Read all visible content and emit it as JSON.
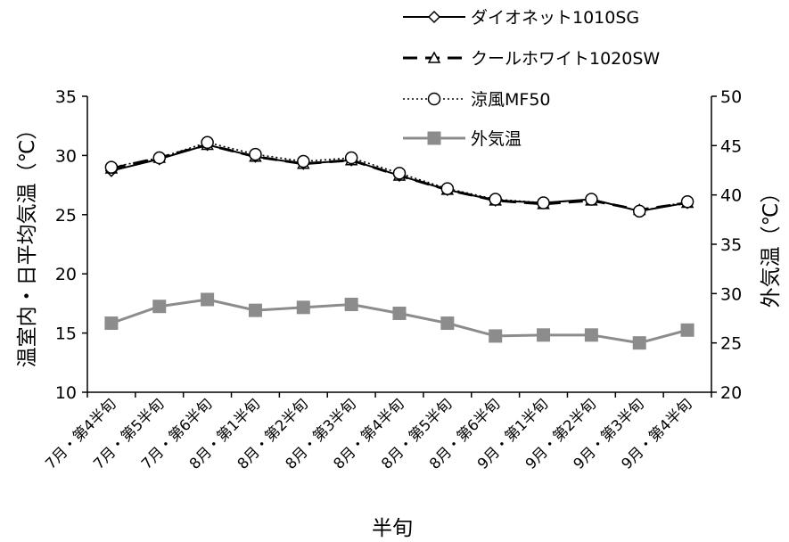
{
  "chart_data": {
    "type": "line",
    "title": "",
    "xlabel": "半旬",
    "ylabel_left": "温室内・日平均気温（℃）",
    "ylabel_right": "外気温（℃）",
    "ylim_left": [
      10,
      35
    ],
    "yticks_left": [
      "10",
      "15",
      "20",
      "25",
      "30",
      "35"
    ],
    "ylim_right": [
      20,
      50
    ],
    "yticks_right": [
      "20",
      "25",
      "30",
      "35",
      "40",
      "45",
      "50"
    ],
    "grid": false,
    "legend_position": "top-right",
    "categories": [
      "7月・第4半旬",
      "7月・第5半旬",
      "7月・第6半旬",
      "8月・第1半旬",
      "8月・第2半旬",
      "8月・第3半旬",
      "8月・第4半旬",
      "8月・第5半旬",
      "8月・第6半旬",
      "9月・第1半旬",
      "9月・第2半旬",
      "9月・第3半旬",
      "9月・第4半旬"
    ],
    "series": [
      {
        "name": "ダイオネット1010SG",
        "axis": "left",
        "marker": "diamond",
        "line": "solid",
        "color": "#000000",
        "values": [
          28.7,
          29.7,
          30.9,
          29.9,
          29.3,
          29.6,
          28.3,
          27.1,
          26.2,
          26.0,
          26.3,
          25.3,
          26.0
        ]
      },
      {
        "name": "クールホワイト1020SW",
        "axis": "left",
        "marker": "triangle",
        "line": "dashed",
        "color": "#000000",
        "values": [
          28.9,
          29.8,
          30.9,
          29.9,
          29.3,
          29.6,
          28.3,
          27.1,
          26.2,
          25.9,
          26.2,
          25.4,
          26.0
        ]
      },
      {
        "name": "涼風MF50",
        "axis": "left",
        "marker": "circle",
        "line": "dotted",
        "color": "#000000",
        "values": [
          29.0,
          29.8,
          31.1,
          30.1,
          29.5,
          29.8,
          28.5,
          27.2,
          26.3,
          26.0,
          26.3,
          25.3,
          26.1
        ]
      },
      {
        "name": "外気温",
        "axis": "right",
        "marker": "square",
        "line": "solid",
        "color": "#8c8c8c",
        "values": [
          27.0,
          28.7,
          29.4,
          28.3,
          28.6,
          28.9,
          28.0,
          27.0,
          25.7,
          25.8,
          25.8,
          25.0,
          26.3
        ]
      }
    ]
  }
}
